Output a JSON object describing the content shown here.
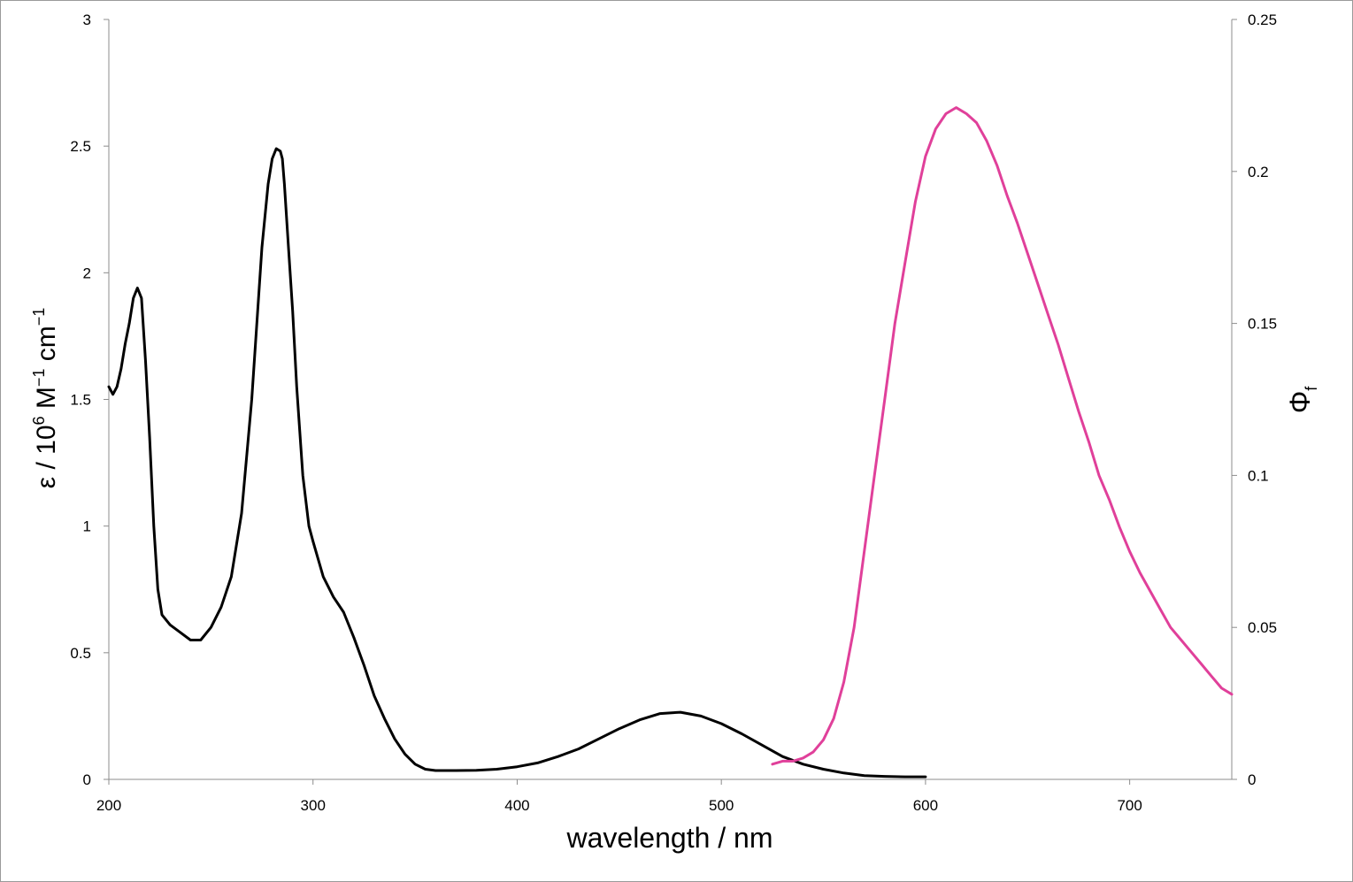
{
  "chart_data": {
    "type": "line",
    "xlabel": "wavelength / nm",
    "ylabel_left": {
      "prefix": "ε / 10",
      "exp": "6",
      "mid": " M",
      "exp2": "−1",
      "suffix": " cm",
      "exp3": "−1"
    },
    "ylabel_right": {
      "symbol": "Φ",
      "sub": "f"
    },
    "xlim": [
      200,
      750
    ],
    "ylim_left": [
      0,
      3
    ],
    "ylim_right": [
      0,
      0.25
    ],
    "x_ticks": [
      {
        "value": 200,
        "label": "200"
      },
      {
        "value": 300,
        "label": "300"
      },
      {
        "value": 400,
        "label": "400"
      },
      {
        "value": 500,
        "label": "500"
      },
      {
        "value": 600,
        "label": "600"
      },
      {
        "value": 700,
        "label": "700"
      }
    ],
    "y_left_ticks": [
      {
        "value": 0,
        "label": "0"
      },
      {
        "value": 0.5,
        "label": "0.5"
      },
      {
        "value": 1,
        "label": "1"
      },
      {
        "value": 1.5,
        "label": "1.5"
      },
      {
        "value": 2,
        "label": "2"
      },
      {
        "value": 2.5,
        "label": "2.5"
      },
      {
        "value": 3,
        "label": "3"
      }
    ],
    "y_right_ticks": [
      {
        "value": 0,
        "label": "0"
      },
      {
        "value": 0.05,
        "label": "0.05"
      },
      {
        "value": 0.1,
        "label": "0.1"
      },
      {
        "value": 0.15,
        "label": "0.15"
      },
      {
        "value": 0.2,
        "label": "0.2"
      },
      {
        "value": 0.25,
        "label": "0.25"
      }
    ],
    "grid": false,
    "legend": "none",
    "series": [
      {
        "axis": "left",
        "color": "#000000",
        "x": [
          200,
          202,
          204,
          206,
          208,
          210,
          212,
          214,
          216,
          218,
          220,
          222,
          224,
          226,
          230,
          235,
          240,
          245,
          250,
          255,
          260,
          265,
          270,
          275,
          278,
          280,
          282,
          284,
          285,
          286,
          288,
          290,
          292,
          295,
          298,
          300,
          305,
          310,
          315,
          320,
          325,
          330,
          335,
          340,
          345,
          350,
          355,
          360,
          365,
          370,
          380,
          390,
          400,
          410,
          420,
          430,
          440,
          450,
          460,
          470,
          480,
          490,
          500,
          510,
          520,
          530,
          540,
          550,
          560,
          570,
          580,
          590,
          600
        ],
        "y": [
          1.55,
          1.52,
          1.55,
          1.62,
          1.72,
          1.8,
          1.9,
          1.94,
          1.9,
          1.65,
          1.35,
          1.0,
          0.75,
          0.65,
          0.61,
          0.58,
          0.55,
          0.55,
          0.6,
          0.68,
          0.8,
          1.05,
          1.5,
          2.1,
          2.35,
          2.45,
          2.49,
          2.48,
          2.45,
          2.35,
          2.1,
          1.85,
          1.55,
          1.2,
          1.0,
          0.94,
          0.8,
          0.72,
          0.66,
          0.56,
          0.45,
          0.33,
          0.24,
          0.16,
          0.1,
          0.06,
          0.04,
          0.035,
          0.035,
          0.035,
          0.036,
          0.04,
          0.05,
          0.065,
          0.09,
          0.12,
          0.16,
          0.2,
          0.235,
          0.26,
          0.265,
          0.25,
          0.22,
          0.18,
          0.135,
          0.09,
          0.06,
          0.04,
          0.025,
          0.015,
          0.012,
          0.01,
          0.01
        ]
      },
      {
        "axis": "right",
        "color": "#e0409a",
        "x": [
          525,
          530,
          535,
          540,
          545,
          550,
          555,
          560,
          565,
          570,
          575,
          580,
          585,
          590,
          595,
          600,
          605,
          610,
          615,
          620,
          625,
          630,
          635,
          640,
          645,
          650,
          655,
          660,
          665,
          670,
          675,
          680,
          685,
          690,
          695,
          700,
          705,
          710,
          715,
          720,
          725,
          730,
          735,
          740,
          745,
          750
        ],
        "y": [
          0.005,
          0.006,
          0.006,
          0.007,
          0.009,
          0.013,
          0.02,
          0.032,
          0.05,
          0.075,
          0.1,
          0.125,
          0.15,
          0.17,
          0.19,
          0.205,
          0.214,
          0.219,
          0.221,
          0.219,
          0.216,
          0.21,
          0.202,
          0.192,
          0.183,
          0.173,
          0.163,
          0.153,
          0.143,
          0.132,
          0.121,
          0.111,
          0.1,
          0.092,
          0.083,
          0.075,
          0.068,
          0.062,
          0.056,
          0.05,
          0.046,
          0.042,
          0.038,
          0.034,
          0.03,
          0.028
        ]
      }
    ]
  }
}
